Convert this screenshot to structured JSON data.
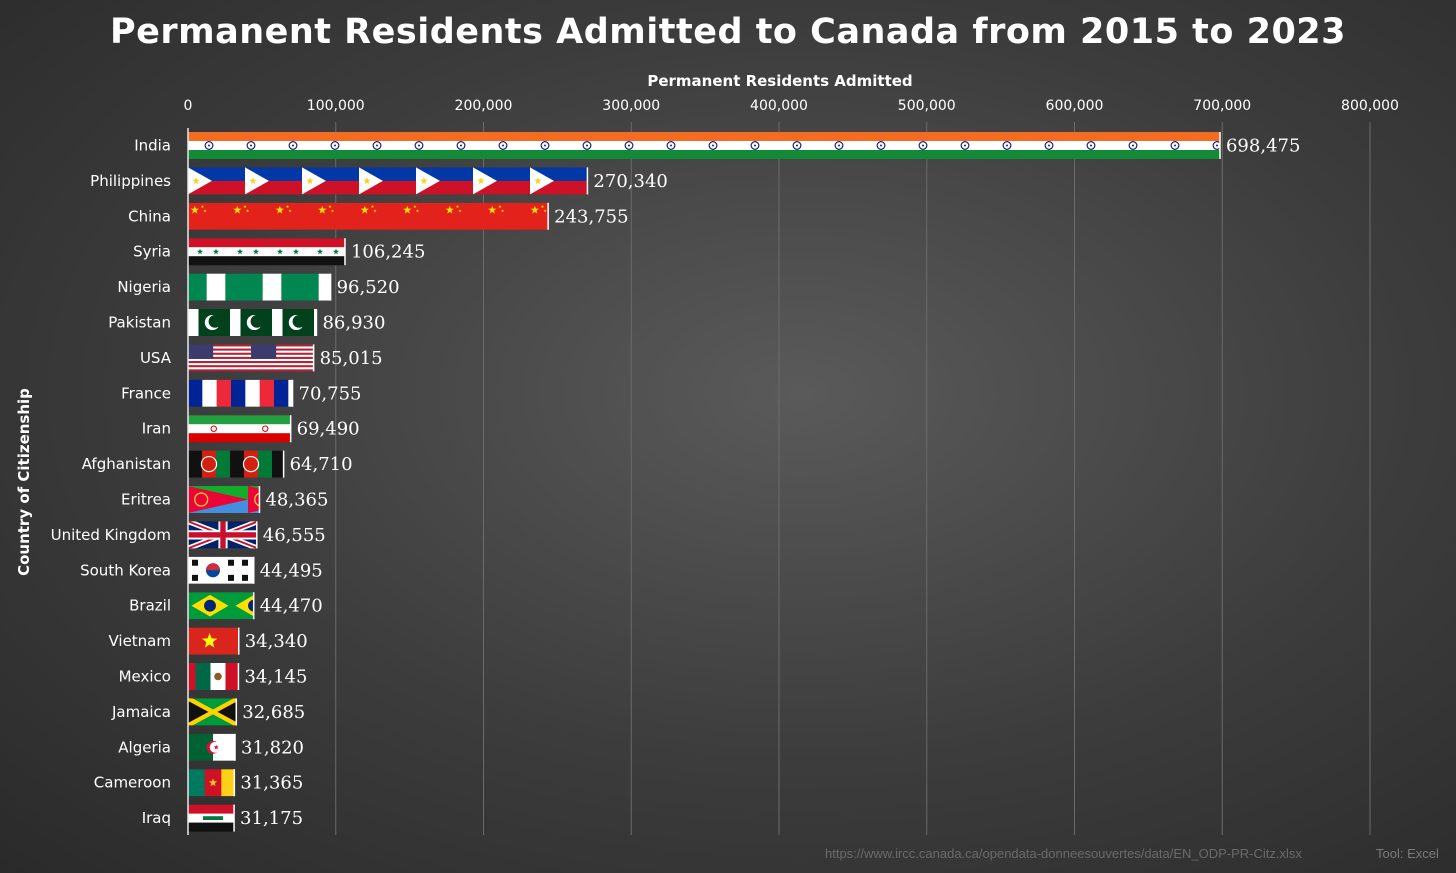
{
  "chart_data": {
    "type": "bar",
    "orientation": "horizontal",
    "title": "Permanent Residents Admitted to Canada from 2015 to 2023",
    "xlabel": "Permanent Residents Admitted",
    "ylabel": "Country of Citizenship",
    "xlim": [
      0,
      800000
    ],
    "x_ticks": [
      "0",
      "100,000",
      "200,000",
      "300,000",
      "400,000",
      "500,000",
      "600,000",
      "700,000",
      "800,000"
    ],
    "grid": true,
    "bar_fill": "country flags",
    "categories": [
      "India",
      "Philippines",
      "China",
      "Syria",
      "Nigeria",
      "Pakistan",
      "USA",
      "France",
      "Iran",
      "Afghanistan",
      "Eritrea",
      "United Kingdom",
      "South Korea",
      "Brazil",
      "Vietnam",
      "Mexico",
      "Jamaica",
      "Algeria",
      "Cameroon",
      "Iraq"
    ],
    "values": [
      698475,
      270340,
      243755,
      106245,
      96520,
      86930,
      85015,
      70755,
      69490,
      64710,
      48365,
      46555,
      44495,
      44470,
      34340,
      34145,
      32685,
      31820,
      31365,
      31175
    ],
    "value_labels": [
      "698,475",
      "270,340",
      "243,755",
      "106,245",
      "96,520",
      "86,930",
      "85,015",
      "70,755",
      "69,490",
      "64,710",
      "48,365",
      "46,555",
      "44,495",
      "44,470",
      "34,340",
      "34,145",
      "32,685",
      "31,820",
      "31,365",
      "31,175"
    ]
  },
  "source": "https://www.ircc.canada.ca/opendata-donneesouvertes/data/EN_ODP-PR-Citz.xlsx",
  "tool": "Tool: Excel"
}
